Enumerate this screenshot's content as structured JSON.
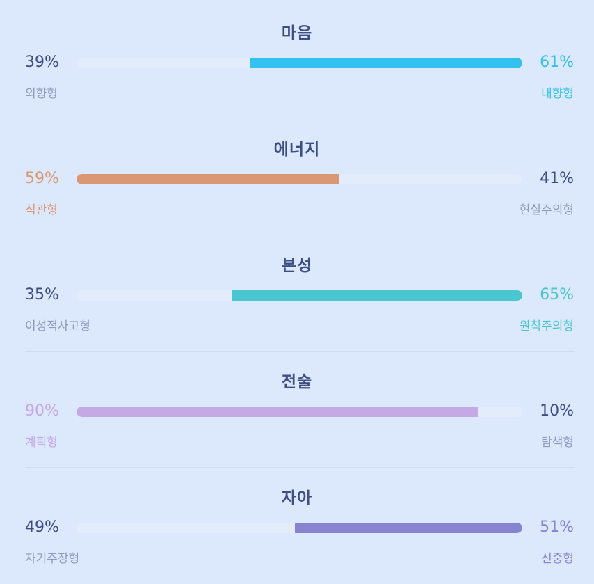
{
  "colors": {
    "background": "#dce8fb",
    "track": "#e3ecfb",
    "title": "#3e4f86",
    "neutral_percent": "#3f4d83",
    "neutral_label": "#8e9ac0"
  },
  "traits": [
    {
      "title": "마음",
      "left_percent": "39%",
      "right_percent": "61%",
      "left_label": "외향형",
      "right_label": "내향형",
      "dominant": "right",
      "dominant_fraction": 0.61,
      "color": "#33c1ee"
    },
    {
      "title": "에너지",
      "left_percent": "59%",
      "right_percent": "41%",
      "left_label": "직관형",
      "right_label": "현실주의형",
      "dominant": "left",
      "dominant_fraction": 0.59,
      "color": "#d99873"
    },
    {
      "title": "본성",
      "left_percent": "35%",
      "right_percent": "65%",
      "left_label": "이성적사고형",
      "right_label": "원칙주의형",
      "dominant": "right",
      "dominant_fraction": 0.65,
      "color": "#4ac6d1"
    },
    {
      "title": "전술",
      "left_percent": "90%",
      "right_percent": "10%",
      "left_label": "계획형",
      "right_label": "탐색형",
      "dominant": "left",
      "dominant_fraction": 0.9,
      "color": "#c4a9e4"
    },
    {
      "title": "자아",
      "left_percent": "49%",
      "right_percent": "51%",
      "left_label": "자기주장형",
      "right_label": "신중형",
      "dominant": "right",
      "dominant_fraction": 0.51,
      "color": "#8883d0"
    }
  ]
}
